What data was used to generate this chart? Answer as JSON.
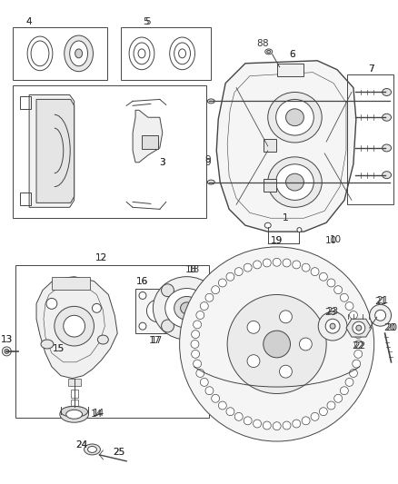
{
  "background_color": "#ffffff",
  "line_color": "#444444",
  "label_color": "#333333",
  "figsize": [
    4.38,
    5.33
  ],
  "dpi": 100
}
